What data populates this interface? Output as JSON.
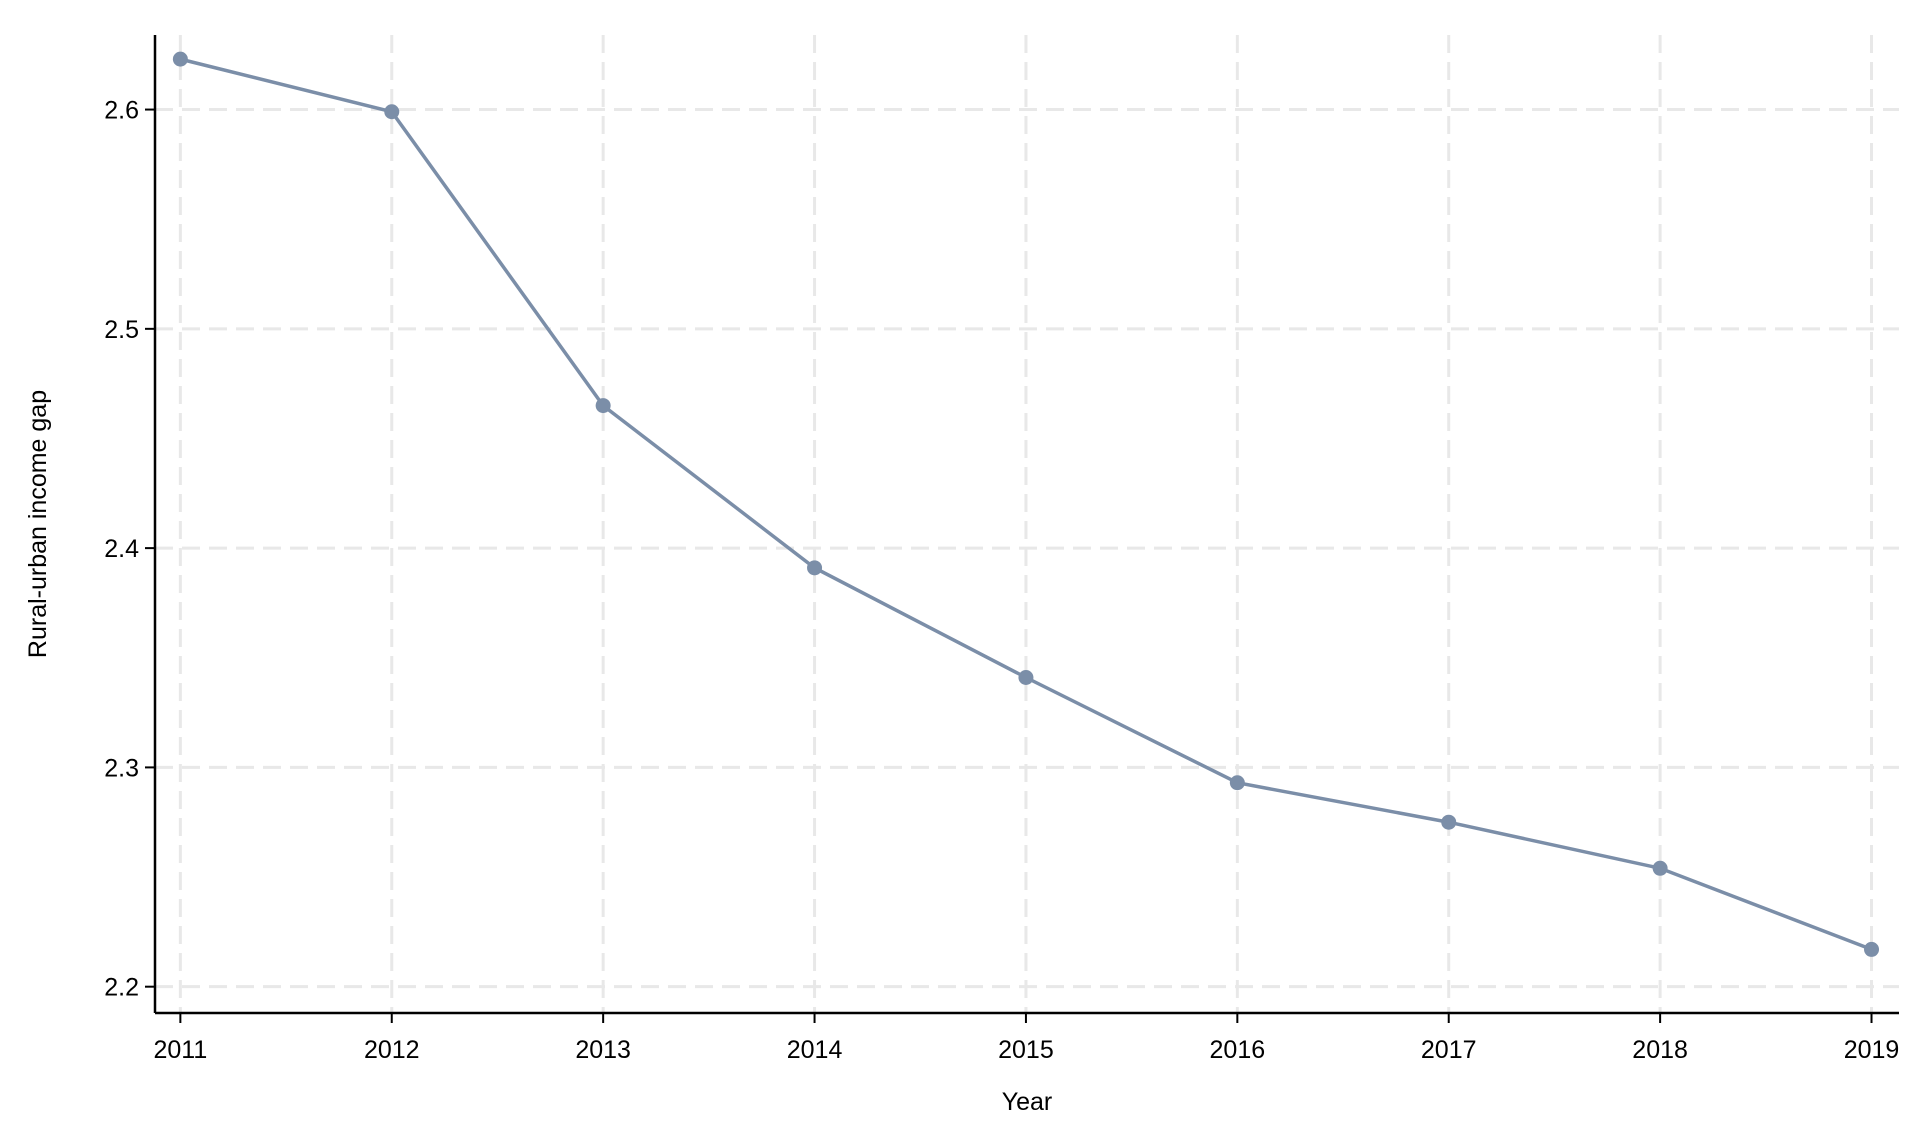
{
  "chart_data": {
    "type": "line",
    "xlabel": "Year",
    "ylabel": "Rural-urban income gap",
    "x": [
      2011,
      2012,
      2013,
      2014,
      2015,
      2016,
      2017,
      2018,
      2019
    ],
    "series": [
      {
        "color": "#7b8ea8",
        "values": [
          2.623,
          2.599,
          2.465,
          2.391,
          2.341,
          2.293,
          2.275,
          2.254,
          2.217
        ]
      }
    ],
    "xlim": [
      2010.88,
      2019.13
    ],
    "xticks": [
      2011,
      2012,
      2013,
      2014,
      2015,
      2016,
      2017,
      2018,
      2019
    ],
    "ylim": [
      2.188,
      2.634
    ],
    "yticks": [
      2.2,
      2.3,
      2.4,
      2.5,
      2.6
    ],
    "grid": true
  }
}
